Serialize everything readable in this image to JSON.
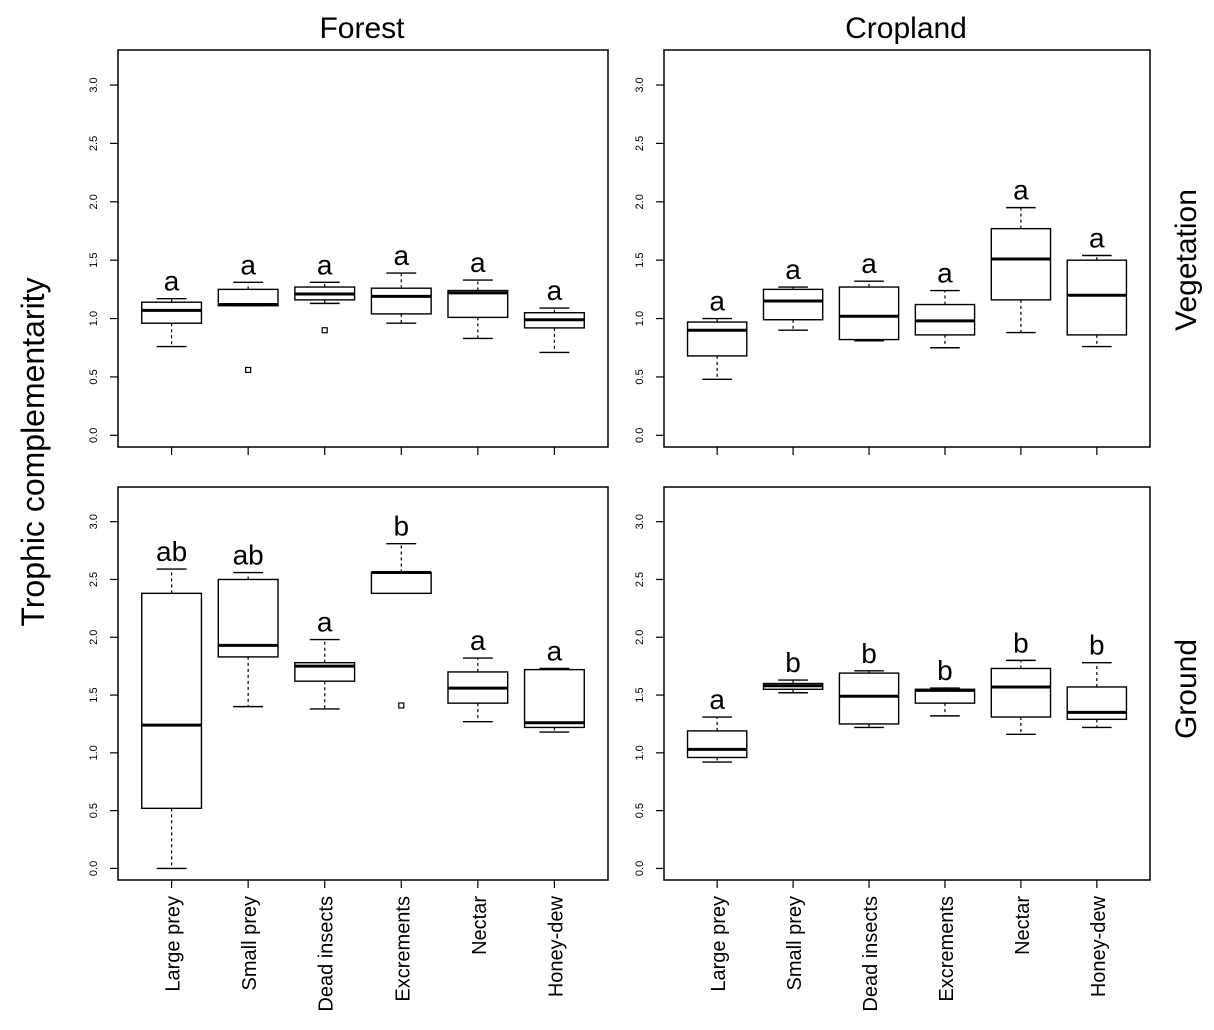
{
  "figure": {
    "ylabel": "Trophic complementarity",
    "col_titles": [
      "Forest",
      "Cropland"
    ],
    "row_titles": [
      "Vegetation",
      "Ground"
    ]
  },
  "chart_data": [
    {
      "type": "box",
      "panel": "Forest / Vegetation",
      "categories": [
        "Large prey",
        "Small prey",
        "Dead insects",
        "Excrements",
        "Nectar",
        "Honey-dew"
      ],
      "ylim": [
        -0.1,
        3.3
      ],
      "yticks": [
        "0.0",
        "0.5",
        "1.0",
        "1.5",
        "2.0",
        "2.5",
        "3.0"
      ],
      "boxes": [
        {
          "min": 0.76,
          "q1": 0.96,
          "median": 1.07,
          "q3": 1.14,
          "max": 1.17,
          "outliers": [],
          "letter": "a"
        },
        {
          "min": 1.11,
          "q1": 1.11,
          "median": 1.12,
          "q3": 1.25,
          "max": 1.31,
          "outliers": [
            0.56
          ],
          "letter": "a"
        },
        {
          "min": 1.13,
          "q1": 1.16,
          "median": 1.21,
          "q3": 1.27,
          "max": 1.31,
          "outliers": [
            0.9
          ],
          "letter": "a"
        },
        {
          "min": 0.96,
          "q1": 1.04,
          "median": 1.19,
          "q3": 1.26,
          "max": 1.39,
          "outliers": [],
          "letter": "a"
        },
        {
          "min": 0.83,
          "q1": 1.01,
          "median": 1.22,
          "q3": 1.24,
          "max": 1.33,
          "outliers": [],
          "letter": "a"
        },
        {
          "min": 0.71,
          "q1": 0.92,
          "median": 0.99,
          "q3": 1.05,
          "max": 1.09,
          "outliers": [],
          "letter": "a"
        }
      ]
    },
    {
      "type": "box",
      "panel": "Cropland / Vegetation",
      "categories": [
        "Large prey",
        "Small prey",
        "Dead insects",
        "Excrements",
        "Nectar",
        "Honey-dew"
      ],
      "ylim": [
        -0.1,
        3.3
      ],
      "yticks": [
        "0.0",
        "0.5",
        "1.0",
        "1.5",
        "2.0",
        "2.5",
        "3.0"
      ],
      "boxes": [
        {
          "min": 0.48,
          "q1": 0.68,
          "median": 0.9,
          "q3": 0.97,
          "max": 1.0,
          "outliers": [],
          "letter": "a"
        },
        {
          "min": 0.9,
          "q1": 0.99,
          "median": 1.15,
          "q3": 1.25,
          "max": 1.27,
          "outliers": [],
          "letter": "a"
        },
        {
          "min": 0.81,
          "q1": 0.82,
          "median": 1.02,
          "q3": 1.27,
          "max": 1.32,
          "outliers": [],
          "letter": "a"
        },
        {
          "min": 0.75,
          "q1": 0.86,
          "median": 0.98,
          "q3": 1.12,
          "max": 1.24,
          "outliers": [],
          "letter": "a"
        },
        {
          "min": 0.88,
          "q1": 1.16,
          "median": 1.51,
          "q3": 1.77,
          "max": 1.95,
          "outliers": [],
          "letter": "a"
        },
        {
          "min": 0.76,
          "q1": 0.86,
          "median": 1.2,
          "q3": 1.5,
          "max": 1.54,
          "outliers": [],
          "letter": "a"
        }
      ]
    },
    {
      "type": "box",
      "panel": "Forest / Ground",
      "categories": [
        "Large prey",
        "Small prey",
        "Dead insects",
        "Excrements",
        "Nectar",
        "Honey-dew"
      ],
      "ylim": [
        -0.1,
        3.3
      ],
      "yticks": [
        "0.0",
        "0.5",
        "1.0",
        "1.5",
        "2.0",
        "2.5",
        "3.0"
      ],
      "boxes": [
        {
          "min": 0.0,
          "q1": 0.52,
          "median": 1.24,
          "q3": 2.38,
          "max": 2.59,
          "outliers": [],
          "letter": "ab"
        },
        {
          "min": 1.4,
          "q1": 1.83,
          "median": 1.93,
          "q3": 2.5,
          "max": 2.56,
          "outliers": [],
          "letter": "ab"
        },
        {
          "min": 1.38,
          "q1": 1.62,
          "median": 1.75,
          "q3": 1.78,
          "max": 1.98,
          "outliers": [],
          "letter": "a"
        },
        {
          "min": 2.38,
          "q1": 2.38,
          "median": 2.56,
          "q3": 2.56,
          "max": 2.81,
          "outliers": [
            1.41
          ],
          "letter": "b"
        },
        {
          "min": 1.27,
          "q1": 1.43,
          "median": 1.56,
          "q3": 1.7,
          "max": 1.82,
          "outliers": [],
          "letter": "a"
        },
        {
          "min": 1.18,
          "q1": 1.22,
          "median": 1.26,
          "q3": 1.72,
          "max": 1.73,
          "outliers": [],
          "letter": "a"
        }
      ]
    },
    {
      "type": "box",
      "panel": "Cropland / Ground",
      "categories": [
        "Large prey",
        "Small prey",
        "Dead insects",
        "Excrements",
        "Nectar",
        "Honey-dew"
      ],
      "ylim": [
        -0.1,
        3.3
      ],
      "yticks": [
        "0.0",
        "0.5",
        "1.0",
        "1.5",
        "2.0",
        "2.5",
        "3.0"
      ],
      "boxes": [
        {
          "min": 0.92,
          "q1": 0.96,
          "median": 1.03,
          "q3": 1.19,
          "max": 1.31,
          "outliers": [],
          "letter": "a"
        },
        {
          "min": 1.52,
          "q1": 1.55,
          "median": 1.58,
          "q3": 1.6,
          "max": 1.63,
          "outliers": [],
          "letter": "b"
        },
        {
          "min": 1.22,
          "q1": 1.25,
          "median": 1.49,
          "q3": 1.69,
          "max": 1.71,
          "outliers": [],
          "letter": "b"
        },
        {
          "min": 1.32,
          "q1": 1.43,
          "median": 1.54,
          "q3": 1.55,
          "max": 1.56,
          "outliers": [],
          "letter": "b"
        },
        {
          "min": 1.16,
          "q1": 1.31,
          "median": 1.57,
          "q3": 1.73,
          "max": 1.8,
          "outliers": [],
          "letter": "b"
        },
        {
          "min": 1.22,
          "q1": 1.29,
          "median": 1.35,
          "q3": 1.57,
          "max": 1.78,
          "outliers": [],
          "letter": "b"
        }
      ]
    }
  ]
}
